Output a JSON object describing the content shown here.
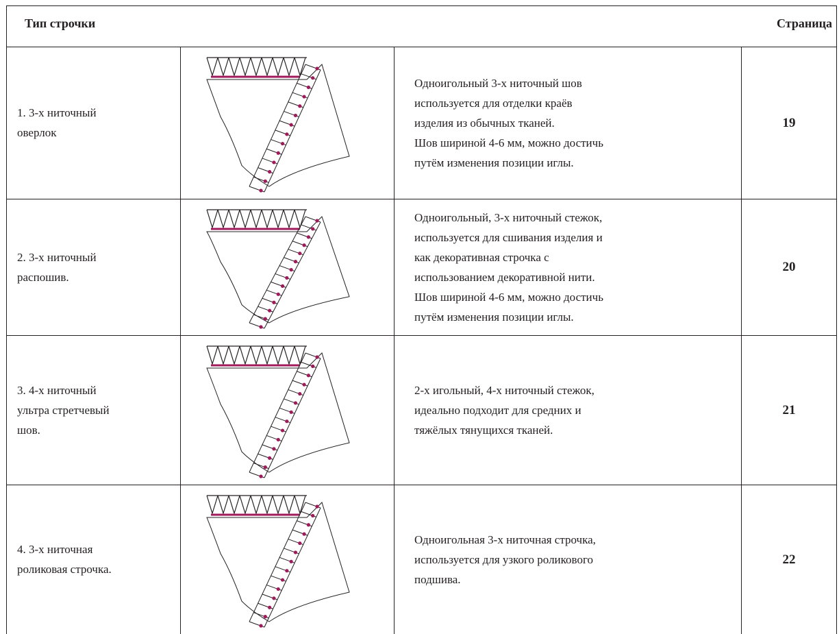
{
  "header": {
    "type_label": "Тип строчки",
    "page_label": "Страница"
  },
  "rows": [
    {
      "name": [
        "1. 3-х ниточный",
        "оверлок"
      ],
      "description": [
        "Одноигольный 3-х ниточный шов",
        "используется для отделки краёв",
        "изделия из обычных тканей.",
        "Шов шириной 4-6 мм, можно достичь",
        "путём изменения позиции иглы."
      ],
      "page": 19
    },
    {
      "name": [
        "2. 3-х ниточный",
        "распошив."
      ],
      "description": [
        "Одноигольный, 3-х ниточный стежок,",
        "используется для сшивания изделия и",
        "как декоративная строчка с",
        "использованием декоративной нити.",
        "Шов шириной 4-6 мм, можно достичь",
        "путём изменения позиции иглы."
      ],
      "page": 20
    },
    {
      "name": [
        "3. 4-х ниточный",
        "ультра стретчевый",
        "шов."
      ],
      "description": [
        "2-х игольный, 4-х ниточный стежок,",
        "идеально подходит для средних и",
        "тяжёлых тянущихся тканей."
      ],
      "page": 21
    },
    {
      "name": [
        "4. 3-х ниточная",
        "роликовая строчка."
      ],
      "description": [
        "Одноигольная 3-х ниточная строчка,",
        "используется для узкого роликового",
        "подшива."
      ],
      "page": 22
    }
  ]
}
